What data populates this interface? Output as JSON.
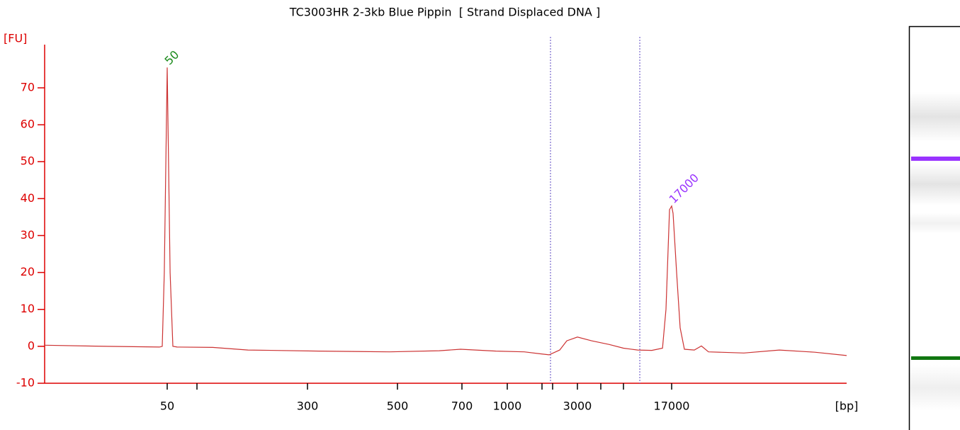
{
  "chart_data": {
    "type": "line",
    "title": "TC3003HR 2-3kb Blue Pippin  [ Strand Displaced DNA ]",
    "ylabel": "[FU]",
    "xlabel": "[bp]",
    "color": "#cc3333",
    "axis_color": "#dd0000",
    "x": [
      3,
      12.4,
      41.8,
      44.6,
      46.8,
      50,
      53.5,
      57.1,
      63,
      116.8,
      166,
      320,
      478,
      622,
      695,
      915,
      1220,
      1817,
      2245,
      2522,
      3000,
      4088,
      6485,
      10000,
      11690,
      13660,
      15370,
      15970,
      16610,
      17000,
      17270,
      17960,
      18670,
      19560,
      21830,
      23600,
      25520,
      37700,
      55700,
      82330,
      117000
    ],
    "values": [
      0.3,
      0,
      -0.2,
      0,
      20,
      75.5,
      20,
      0,
      -0.2,
      -0.3,
      -1.0,
      -1.3,
      -1.5,
      -1.2,
      -0.8,
      -1.3,
      -1.5,
      -2.3,
      -1,
      1.5,
      2.5,
      1.5,
      0.5,
      -0.5,
      -1,
      -1.1,
      -0.5,
      10,
      37,
      38,
      36,
      20,
      5,
      -0.8,
      -1,
      0.1,
      -1.5,
      -1.8,
      -1,
      -1.6,
      -2.5
    ],
    "xlim": [
      3,
      117000
    ],
    "xticks": [
      50,
      {
        "value": 100,
        "label": null
      },
      300,
      500,
      700,
      1000,
      {
        "value": 1500,
        "label": null
      },
      {
        "value": 2000,
        "label": null
      },
      3000,
      {
        "value": 5000,
        "label": null
      },
      {
        "value": 10000,
        "label": null
      },
      17000
    ],
    "ylim": [
      -10,
      81.7
    ],
    "yticks": [
      -10,
      0,
      10,
      20,
      30,
      40,
      50,
      60,
      70
    ],
    "region_lines": {
      "color": "#7766cc",
      "x": [
        1888,
        11970
      ]
    },
    "peaks": [
      {
        "label": "50",
        "x": 50,
        "y": 75.5,
        "color": "#1a8a1a"
      },
      {
        "label": "17000",
        "x": 17000,
        "y": 38,
        "color": "#9933ff"
      }
    ]
  }
}
